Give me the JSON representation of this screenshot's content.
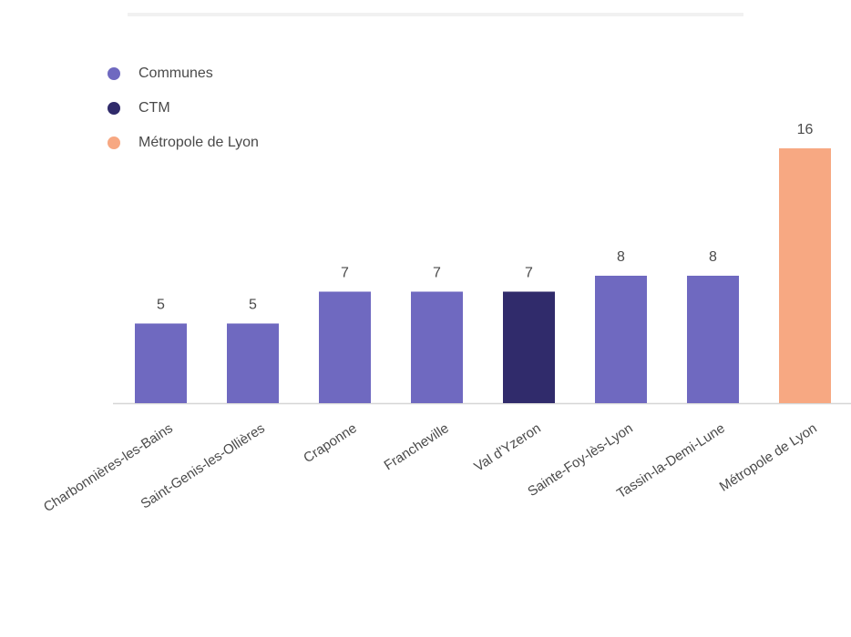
{
  "chart_data": {
    "type": "bar",
    "categories": [
      "Charbonnières-les-Bains",
      "Saint-Genis-les-Ollières",
      "Craponne",
      "Francheville",
      "Val d'Yzeron",
      "Sainte-Foy-lès-Lyon",
      "Tassin-la-Demi-Lune",
      "Métropole de Lyon"
    ],
    "values": [
      5,
      5,
      7,
      7,
      7,
      8,
      8,
      16
    ],
    "data_labels": [
      "5",
      "5",
      "7",
      "7",
      "7",
      "8",
      "8",
      "16"
    ],
    "groups": [
      "Communes",
      "Communes",
      "Communes",
      "Communes",
      "CTM",
      "Communes",
      "Communes",
      "Métropole de Lyon"
    ],
    "legend": [
      {
        "label": "Communes",
        "color": "#6f69c0"
      },
      {
        "label": "CTM",
        "color": "#302b6b"
      },
      {
        "label": "Métropole de Lyon",
        "color": "#f7a882"
      }
    ],
    "legend_position": "top-left",
    "ylim": [
      0,
      16
    ],
    "grid": false,
    "title": "",
    "xlabel": "",
    "ylabel": ""
  }
}
